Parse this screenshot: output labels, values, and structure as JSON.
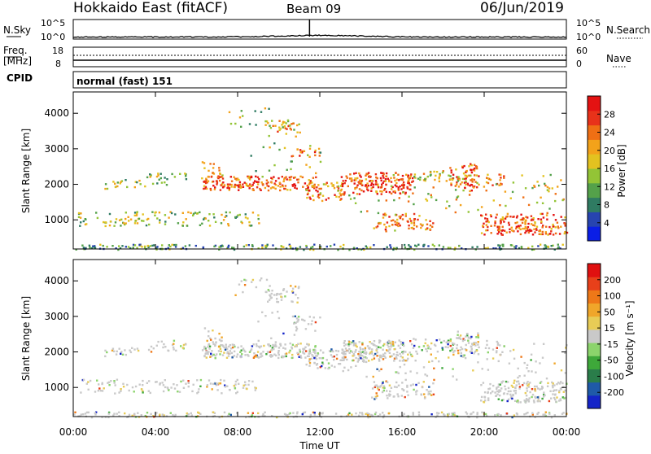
{
  "header": {
    "title": "Hokkaido East (fitACF)",
    "beam": "Beam 09",
    "date": "06/Jun/2019"
  },
  "top_panels": {
    "nsky_label": "N.Sky",
    "nsky_ticks": [
      "10^5",
      "10^0"
    ],
    "nsearch_label": "N.Search",
    "nsearch_ticks": [
      "10^5",
      "10^0"
    ],
    "freq_label": "Freq.",
    "freq_unit": "[MHz]",
    "freq_ticks": [
      "18",
      "8"
    ],
    "nave_label": "Nave",
    "nave_ticks": [
      "60",
      "0"
    ],
    "cpid_label": "CPID",
    "cpid_value": "normal (fast) 151"
  },
  "chart_data": [
    {
      "type": "heatmap",
      "name": "power",
      "ylabel": "Slant Range [km]",
      "yticks": [
        "4000",
        "3000",
        "2000",
        "1000"
      ],
      "ylim": [
        180,
        4600
      ],
      "xlim_hours": [
        0,
        24
      ],
      "colorbar": {
        "label": "Power [dB]",
        "ticks": [
          "28",
          "24",
          "20",
          "16",
          "12",
          "8",
          "4"
        ],
        "colors": [
          "#0a1ee6",
          "#2744b0",
          "#2f7b62",
          "#54a14a",
          "#93c436",
          "#e3c220",
          "#f3a21a",
          "#ef6f14",
          "#e8321a",
          "#e41212"
        ]
      }
    },
    {
      "type": "heatmap",
      "name": "velocity",
      "ylabel": "Slant Range [km]",
      "yticks": [
        "4000",
        "3000",
        "2000",
        "1000"
      ],
      "ylim": [
        180,
        4600
      ],
      "xlim_hours": [
        0,
        24
      ],
      "xlabel": "Time UT",
      "xticks": [
        "00:00",
        "04:00",
        "08:00",
        "12:00",
        "16:00",
        "20:00",
        "00:00"
      ],
      "colorbar": {
        "label": "Velocity [m s⁻¹]",
        "ticks": [
          "200",
          "100",
          "50",
          "15",
          "-15",
          "-50",
          "-100",
          "-200"
        ],
        "colors": [
          "#1424c8",
          "#1f5aa8",
          "#2a7d4a",
          "#3ea83a",
          "#8cd46c",
          "#c9c9c9",
          "#e8cc56",
          "#f0a62a",
          "#ee7818",
          "#e8401a",
          "#e01010"
        ]
      }
    }
  ]
}
